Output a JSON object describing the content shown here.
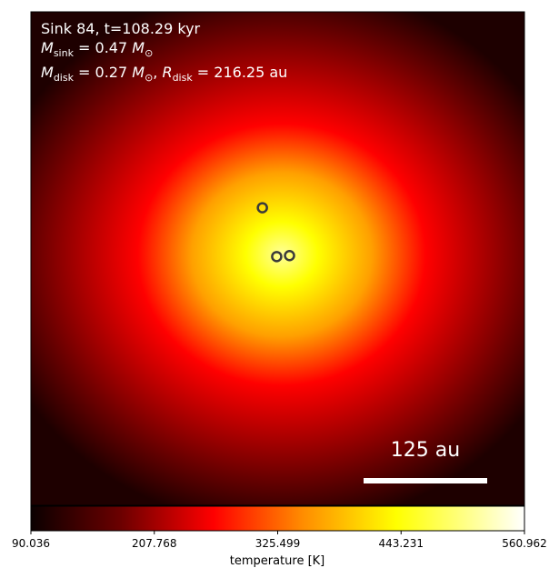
{
  "chart_data": {
    "type": "heatmap",
    "title_lines": [
      "Sink 84, t=108.29 kyr",
      "M_sink = 0.47 M_⊙",
      "M_disk = 0.27 M_⊙, R_disk = 216.25 au"
    ],
    "colormap": "hot",
    "colorbar": {
      "label": "temperature [K]",
      "min": 90.036,
      "max": 560.962,
      "tick_labels": [
        "90.036",
        "207.768",
        "325.499",
        "443.231",
        "560.962"
      ],
      "ticks": [
        90.036,
        207.768,
        325.499,
        443.231,
        560.962
      ]
    },
    "scale_bar": {
      "label": "125 au",
      "length_au": 125
    },
    "sinks": [
      {
        "name": "sink-a",
        "x_frac": 0.469,
        "y_frac": 0.397
      },
      {
        "name": "sink-b",
        "x_frac": 0.498,
        "y_frac": 0.496
      },
      {
        "name": "sink-c",
        "x_frac": 0.524,
        "y_frac": 0.494
      }
    ],
    "grid": false
  }
}
